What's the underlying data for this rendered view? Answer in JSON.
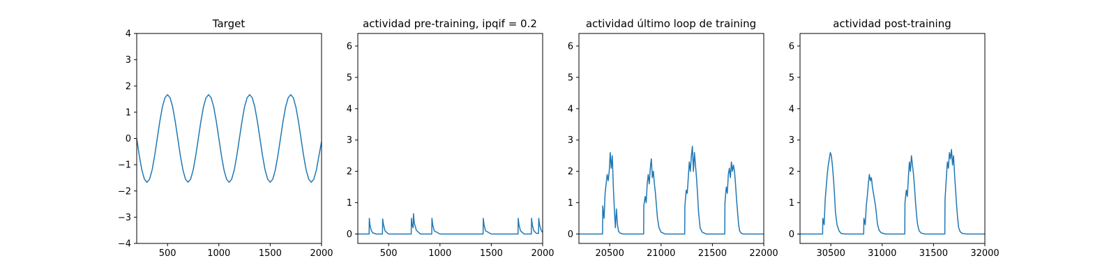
{
  "figure": {
    "line_color": "#1f77b4"
  },
  "chart_data": [
    {
      "type": "line",
      "title": "Target",
      "xlim": [
        200,
        2000
      ],
      "ylim": [
        -4,
        4
      ],
      "xticks": [
        500,
        1000,
        1500,
        2000
      ],
      "xtick_labels": [
        "500",
        "1000",
        "1500",
        "2000"
      ],
      "yticks": [
        -4,
        -3,
        -2,
        -1,
        0,
        1,
        2,
        3,
        4
      ],
      "ytick_labels": [
        "−4",
        "−3",
        "−2",
        "−1",
        "0",
        "1",
        "2",
        "3",
        "4"
      ],
      "series": [
        {
          "x": [
            200,
            225,
            250,
            275,
            300,
            325,
            350,
            375,
            400,
            425,
            450,
            475,
            500,
            525,
            550,
            575,
            600,
            625,
            650,
            675,
            700,
            725,
            750,
            775,
            800,
            825,
            850,
            875,
            900,
            925,
            950,
            975,
            1000,
            1025,
            1050,
            1075,
            1100,
            1125,
            1150,
            1175,
            1200,
            1225,
            1250,
            1275,
            1300,
            1325,
            1350,
            1375,
            1400,
            1425,
            1450,
            1475,
            1500,
            1525,
            1550,
            1575,
            1600,
            1625,
            1650,
            1675,
            1700,
            1725,
            1750,
            1775,
            1800,
            1825,
            1850,
            1875,
            1900,
            1925,
            1950,
            1975,
            2000
          ],
          "y": [
            0.0,
            -0.65,
            -1.2,
            -1.55,
            -1.67,
            -1.55,
            -1.2,
            -0.65,
            0.0,
            0.65,
            1.2,
            1.55,
            1.67,
            1.55,
            1.2,
            0.65,
            0.0,
            -0.65,
            -1.2,
            -1.55,
            -1.67,
            -1.55,
            -1.2,
            -0.65,
            0.0,
            0.65,
            1.2,
            1.55,
            1.67,
            1.55,
            1.2,
            0.65,
            0.0,
            -0.65,
            -1.2,
            -1.55,
            -1.67,
            -1.55,
            -1.2,
            -0.65,
            0.0,
            0.65,
            1.2,
            1.55,
            1.67,
            1.55,
            1.2,
            0.65,
            0.0,
            -0.65,
            -1.2,
            -1.55,
            -1.67,
            -1.55,
            -1.2,
            -0.65,
            0.0,
            0.65,
            1.2,
            1.55,
            1.67,
            1.55,
            1.2,
            0.65,
            0.0,
            -0.65,
            -1.2,
            -1.55,
            -1.67,
            -1.55,
            -1.2,
            -0.65,
            -0.12
          ]
        }
      ]
    },
    {
      "type": "line",
      "title": "actividad pre-training, ipqif = 0.2",
      "xlim": [
        200,
        2000
      ],
      "ylim": [
        -0.3,
        6.4
      ],
      "xticks": [
        500,
        1000,
        1500,
        2000
      ],
      "xtick_labels": [
        "500",
        "1000",
        "1500",
        "2000"
      ],
      "yticks": [
        0,
        1,
        2,
        3,
        4,
        5,
        6
      ],
      "ytick_labels": [
        "0",
        "1",
        "2",
        "3",
        "4",
        "5",
        "6"
      ],
      "series": [
        {
          "x": [
            200,
            310,
            312,
            318,
            330,
            345,
            380,
            440,
            442,
            450,
            465,
            500,
            720,
            722,
            728,
            738,
            742,
            750,
            770,
            810,
            920,
            922,
            930,
            945,
            1000,
            1420,
            1422,
            1430,
            1445,
            1500,
            1760,
            1762,
            1770,
            1785,
            1820,
            1890,
            1892,
            1900,
            1915,
            1940,
            1960,
            1962,
            1970,
            1985,
            2000
          ],
          "y": [
            0,
            0,
            0.5,
            0.3,
            0.12,
            0.04,
            0,
            0,
            0.48,
            0.3,
            0.1,
            0,
            0,
            0.5,
            0.3,
            0.2,
            0.65,
            0.35,
            0.12,
            0,
            0,
            0.5,
            0.28,
            0.1,
            0,
            0,
            0.5,
            0.28,
            0.1,
            0,
            0,
            0.5,
            0.28,
            0.1,
            0,
            0,
            0.5,
            0.28,
            0.1,
            0.02,
            0.02,
            0.5,
            0.3,
            0.12,
            0.05
          ]
        }
      ]
    },
    {
      "type": "line",
      "title": "actividad último loop de training",
      "xlim": [
        20200,
        22000
      ],
      "ylim": [
        -0.3,
        6.4
      ],
      "xticks": [
        20500,
        21000,
        21500,
        22000
      ],
      "xtick_labels": [
        "20500",
        "21000",
        "21500",
        "22000"
      ],
      "yticks": [
        0,
        1,
        2,
        3,
        4,
        5,
        6
      ],
      "ytick_labels": [
        "0",
        "1",
        "2",
        "3",
        "4",
        "5",
        "6"
      ],
      "series": [
        {
          "x": [
            20200,
            20430,
            20432,
            20445,
            20455,
            20465,
            20475,
            20485,
            20495,
            20505,
            20515,
            20525,
            20535,
            20545,
            20555,
            20565,
            20575,
            20585,
            20600,
            20630,
            20700,
            20830,
            20832,
            20845,
            20855,
            20865,
            20875,
            20885,
            20895,
            20905,
            20915,
            20925,
            20935,
            20945,
            20955,
            20965,
            20980,
            21000,
            21040,
            21100,
            21230,
            21232,
            21245,
            21255,
            21265,
            21275,
            21285,
            21295,
            21305,
            21315,
            21325,
            21335,
            21345,
            21355,
            21365,
            21380,
            21400,
            21440,
            21500,
            21620,
            21622,
            21635,
            21645,
            21655,
            21665,
            21675,
            21685,
            21695,
            21705,
            21715,
            21725,
            21735,
            21745,
            21755,
            21765,
            21780,
            21800,
            21840,
            22000
          ],
          "y": [
            0,
            0,
            0.9,
            0.5,
            1.3,
            1.6,
            1.9,
            1.7,
            2.0,
            2.6,
            2.1,
            2.5,
            1.5,
            0.8,
            0.2,
            0.8,
            0.3,
            0.1,
            0.03,
            0,
            0,
            0,
            0.9,
            1.2,
            1.0,
            1.6,
            1.9,
            1.6,
            2.1,
            2.4,
            1.8,
            2.0,
            1.6,
            1.3,
            0.9,
            0.5,
            0.2,
            0.06,
            0,
            0,
            0,
            0.9,
            1.4,
            1.3,
            1.8,
            2.3,
            2.0,
            2.5,
            2.8,
            2.0,
            2.6,
            2.2,
            1.8,
            1.3,
            0.7,
            0.2,
            0.06,
            0,
            0,
            0,
            1.0,
            1.5,
            1.3,
            1.9,
            2.1,
            1.8,
            2.3,
            2.0,
            2.2,
            2.0,
            1.6,
            1.1,
            0.7,
            0.3,
            0.1,
            0.03,
            0,
            0,
            0
          ]
        }
      ]
    },
    {
      "type": "line",
      "title": "actividad post-training",
      "xlim": [
        30200,
        32000
      ],
      "ylim": [
        -0.3,
        6.4
      ],
      "xticks": [
        30500,
        31000,
        31500,
        32000
      ],
      "xtick_labels": [
        "30500",
        "31000",
        "31500",
        "32000"
      ],
      "yticks": [
        0,
        1,
        2,
        3,
        4,
        5,
        6
      ],
      "ytick_labels": [
        "0",
        "1",
        "2",
        "3",
        "4",
        "5",
        "6"
      ],
      "series": [
        {
          "x": [
            30200,
            30420,
            30422,
            30435,
            30445,
            30455,
            30465,
            30475,
            30485,
            30495,
            30505,
            30515,
            30525,
            30535,
            30545,
            30560,
            30580,
            30600,
            30640,
            30700,
            30820,
            30822,
            30835,
            30845,
            30855,
            30865,
            30875,
            30885,
            30895,
            30905,
            30915,
            30925,
            30935,
            30945,
            30955,
            30970,
            30990,
            31030,
            31100,
            31220,
            31222,
            31235,
            31245,
            31255,
            31265,
            31275,
            31285,
            31295,
            31305,
            31315,
            31325,
            31335,
            31345,
            31360,
            31380,
            31420,
            31500,
            31610,
            31612,
            31625,
            31635,
            31645,
            31655,
            31665,
            31675,
            31685,
            31695,
            31705,
            31715,
            31725,
            31735,
            31745,
            31760,
            31780,
            31820,
            32000
          ],
          "y": [
            0,
            0,
            0.5,
            0.3,
            1.1,
            1.5,
            1.9,
            2.2,
            2.4,
            2.6,
            2.5,
            2.2,
            1.8,
            1.3,
            0.7,
            0.3,
            0.1,
            0.02,
            0,
            0,
            0,
            0.5,
            0.3,
            0.9,
            1.2,
            1.6,
            1.9,
            1.7,
            1.8,
            1.5,
            1.3,
            1.1,
            0.9,
            0.6,
            0.3,
            0.12,
            0.04,
            0,
            0,
            0,
            1.0,
            1.4,
            1.2,
            1.8,
            2.3,
            2.0,
            2.5,
            2.2,
            1.9,
            1.5,
            1.0,
            0.6,
            0.3,
            0.1,
            0.03,
            0,
            0,
            0,
            1.1,
            1.8,
            2.3,
            2.1,
            2.6,
            2.4,
            2.7,
            2.2,
            2.5,
            1.9,
            1.4,
            0.9,
            0.5,
            0.2,
            0.07,
            0.02,
            0,
            0
          ]
        }
      ]
    }
  ]
}
